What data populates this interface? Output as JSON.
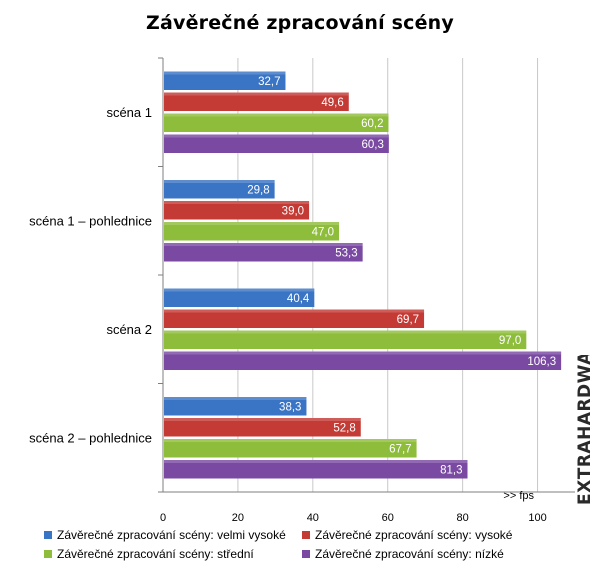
{
  "title": "Závěrečné zpracování scény",
  "unit_label": ">> fps",
  "watermark": "EXTRAHARDWARE.cz",
  "colors": {
    "series": [
      "#3a74c4",
      "#c43a35",
      "#8ebc3b",
      "#7a4aa3"
    ],
    "grid": "#c8c8c8",
    "axis": "#7f7f7f"
  },
  "chart_data": {
    "type": "bar",
    "orientation": "horizontal",
    "title": "Závěrečné zpracování scény",
    "xlabel": ">> fps",
    "ylabel": "",
    "xlim": [
      0,
      110
    ],
    "xticks": [
      0,
      20,
      40,
      60,
      80,
      100
    ],
    "grid": true,
    "legend_position": "bottom",
    "categories": [
      "scéna 1",
      "scéna 1 – pohlednice",
      "scéna 2",
      "scéna 2 – pohlednice"
    ],
    "series": [
      {
        "name": "Závěrečné zpracování scény: velmi vysoké",
        "values": [
          32.7,
          29.8,
          40.4,
          38.3
        ],
        "labels": [
          "32,7",
          "29,8",
          "40,4",
          "38,3"
        ]
      },
      {
        "name": "Závěrečné zpracování scény: vysoké",
        "values": [
          49.6,
          39.0,
          69.7,
          52.8
        ],
        "labels": [
          "49,6",
          "39,0",
          "69,7",
          "52,8"
        ]
      },
      {
        "name": "Závěrečné zpracování scény: střední",
        "values": [
          60.2,
          47.0,
          97.0,
          67.7
        ],
        "labels": [
          "60,2",
          "47,0",
          "97,0",
          "67,7"
        ]
      },
      {
        "name": "Závěrečné zpracování scény: nízké",
        "values": [
          60.3,
          53.3,
          106.3,
          81.3
        ],
        "labels": [
          "60,3",
          "53,3",
          "106,3",
          "81,3"
        ]
      }
    ]
  }
}
